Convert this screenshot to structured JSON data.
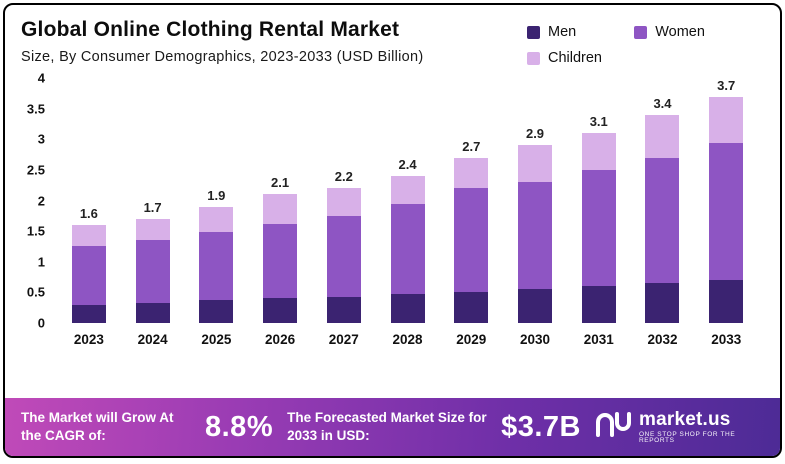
{
  "header": {
    "title": "Global Online Clothing Rental Market",
    "subtitle": "Size, By Consumer Demographics, 2023-2033 (USD Billion)"
  },
  "legend": [
    {
      "label": "Men",
      "color": "#3b2371"
    },
    {
      "label": "Women",
      "color": "#8e55c3"
    },
    {
      "label": "Children",
      "color": "#d8b0e8"
    }
  ],
  "chart_data": {
    "type": "bar",
    "stacked": true,
    "title": "Global Online Clothing Rental Market Size, By Consumer Demographics, 2023-2033 (USD Billion)",
    "xlabel": "",
    "ylabel": "",
    "ylim": [
      0,
      4
    ],
    "yticks": [
      "4",
      "3.5",
      "3",
      "2.5",
      "2",
      "1.5",
      "1",
      "0.5",
      "0"
    ],
    "categories": [
      "2023",
      "2024",
      "2025",
      "2026",
      "2027",
      "2028",
      "2029",
      "2030",
      "2031",
      "2032",
      "2033"
    ],
    "series": [
      {
        "name": "Men",
        "color": "#3b2371",
        "values": [
          0.3,
          0.33,
          0.38,
          0.4,
          0.43,
          0.47,
          0.5,
          0.55,
          0.6,
          0.65,
          0.7
        ]
      },
      {
        "name": "Women",
        "color": "#8e55c3",
        "values": [
          0.95,
          1.02,
          1.1,
          1.22,
          1.32,
          1.48,
          1.7,
          1.75,
          1.9,
          2.05,
          2.25
        ]
      },
      {
        "name": "Children",
        "color": "#d8b0e8",
        "values": [
          0.35,
          0.35,
          0.42,
          0.48,
          0.45,
          0.45,
          0.5,
          0.6,
          0.6,
          0.7,
          0.75
        ]
      }
    ],
    "totals": [
      1.6,
      1.7,
      1.9,
      2.1,
      2.2,
      2.4,
      2.7,
      2.9,
      3.1,
      3.4,
      3.7
    ],
    "grid": false,
    "legend_position": "top-right"
  },
  "banner": {
    "cagr_label": "The Market will Grow At the CAGR of:",
    "cagr_value": "8.8%",
    "forecast_label": "The Forecasted Market Size for 2033 in USD:",
    "forecast_value": "$3.7B",
    "brand": "market.us",
    "brand_tagline": "One Stop Shop For The Reports"
  }
}
